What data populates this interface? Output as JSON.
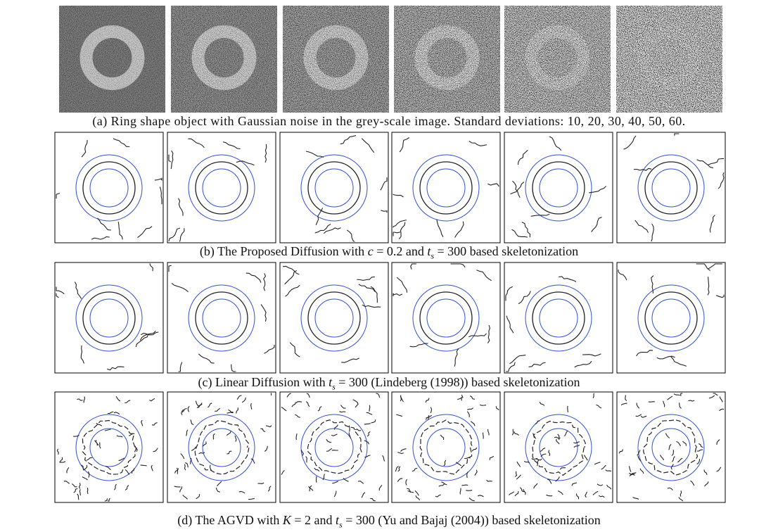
{
  "figure": {
    "rows": [
      {
        "caption": [
          "(a) Ring shape object with Gaussian noise in the grey-scale image. Standard deviations: 10, 20, 30, 40, 50, 60."
        ]
      },
      {
        "caption": [
          "(b) The Proposed Diffusion with ",
          "c",
          " = 0.2 and ",
          "t",
          "s",
          " = 300 based skeletonization"
        ]
      },
      {
        "caption": [
          "(c) Linear Diffusion with ",
          "t",
          "s",
          " = 300 (Lindeberg (1998)) based skeletonization"
        ]
      },
      {
        "caption": [
          "(d) The AGVD with ",
          "K",
          " = 2 and ",
          "t",
          "s",
          " = 300 (Yu and Bajaj (2004)) based skeletonization"
        ]
      }
    ]
  }
}
